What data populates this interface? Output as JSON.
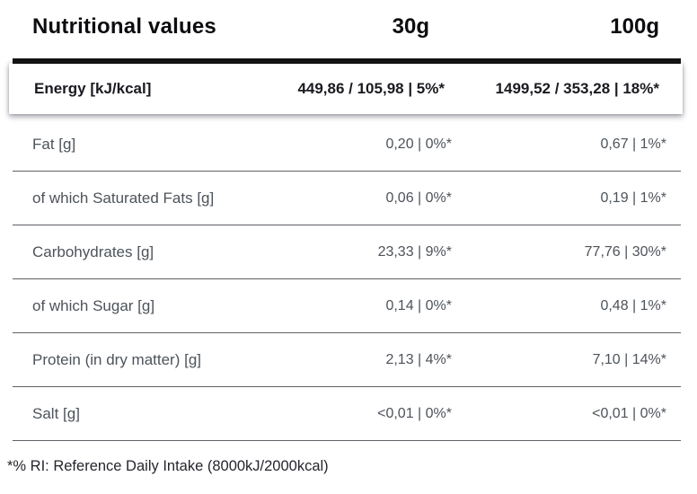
{
  "table": {
    "title": "Nutritional values",
    "columns": [
      "30g",
      "100g"
    ],
    "energy_row": {
      "label": "Energy [kJ/kcal]",
      "per_30g": "449,86 / 105,98 | 5%*",
      "per_100g": "1499,52 / 353,28 | 18%*"
    },
    "rows": [
      {
        "label": "Fat [g]",
        "per_30g": "0,20 | 0%*",
        "per_100g": "0,67 | 1%*"
      },
      {
        "label": "of which Saturated Fats [g]",
        "per_30g": "0,06 | 0%*",
        "per_100g": "0,19 | 1%*"
      },
      {
        "label": "Carbohydrates [g]",
        "per_30g": "23,33 | 9%*",
        "per_100g": "77,76 | 30%*"
      },
      {
        "label": "of which Sugar [g]",
        "per_30g": "0,14 | 0%*",
        "per_100g": "0,48 | 1%*"
      },
      {
        "label": "Protein (in dry matter) [g]",
        "per_30g": "2,13 | 4%*",
        "per_100g": "7,10 | 14%*"
      },
      {
        "label": "Salt [g]",
        "per_30g": "<0,01 | 0%*",
        "per_100g": "<0,01 | 0%*"
      }
    ],
    "footnote": "*% RI: Reference Daily Intake (8000kJ/2000kcal)"
  },
  "colors": {
    "header_bar": "#131313",
    "heading_text": "#0d0d10",
    "energy_text": "#1a1a20",
    "row_text": "#4d535a",
    "divider": "#5e6166",
    "footnote_text": "#25252e",
    "background": "#ffffff"
  }
}
